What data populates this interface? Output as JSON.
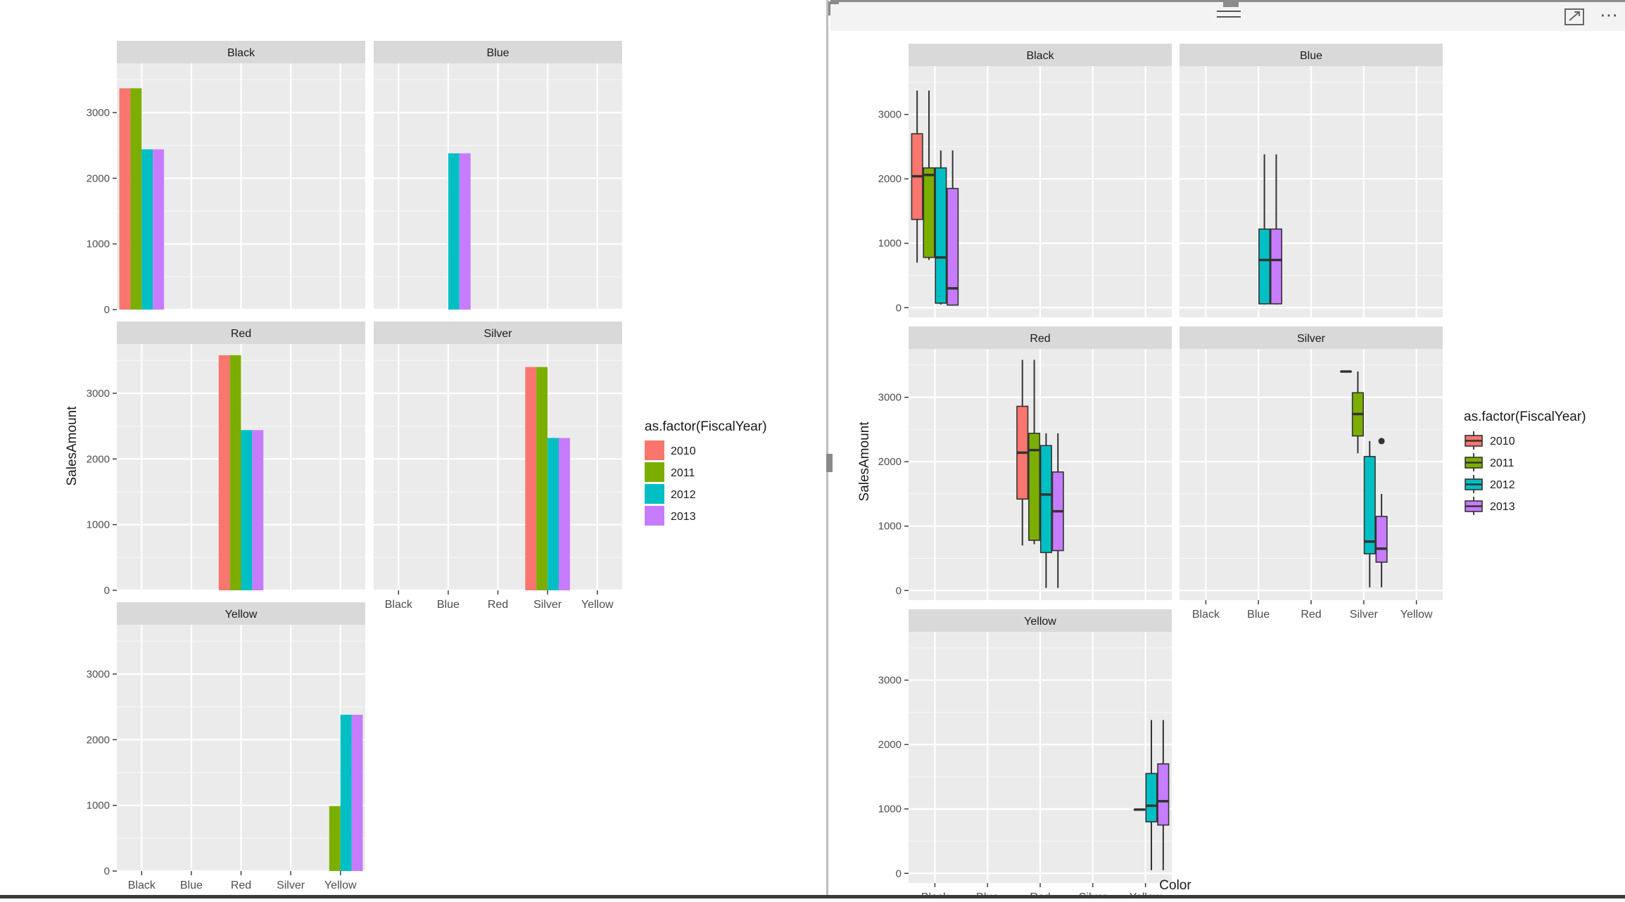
{
  "chart_data": [
    {
      "type": "bar",
      "facet_by": "Color",
      "facets": [
        {
          "strip": "Black",
          "bars": [
            {
              "x": "Black",
              "year": "2010",
              "value": 3370
            },
            {
              "x": "Black",
              "year": "2011",
              "value": 3370
            },
            {
              "x": "Black",
              "year": "2012",
              "value": 2440
            },
            {
              "x": "Black",
              "year": "2013",
              "value": 2440
            }
          ]
        },
        {
          "strip": "Blue",
          "bars": [
            {
              "x": "Blue",
              "year": "2012",
              "value": 2380
            },
            {
              "x": "Blue",
              "year": "2013",
              "value": 2380
            }
          ]
        },
        {
          "strip": "Red",
          "bars": [
            {
              "x": "Red",
              "year": "2010",
              "value": 3580
            },
            {
              "x": "Red",
              "year": "2011",
              "value": 3580
            },
            {
              "x": "Red",
              "year": "2012",
              "value": 2440
            },
            {
              "x": "Red",
              "year": "2013",
              "value": 2440
            }
          ]
        },
        {
          "strip": "Silver",
          "bars": [
            {
              "x": "Silver",
              "year": "2010",
              "value": 3400
            },
            {
              "x": "Silver",
              "year": "2011",
              "value": 3400
            },
            {
              "x": "Silver",
              "year": "2012",
              "value": 2320
            },
            {
              "x": "Silver",
              "year": "2013",
              "value": 2320
            }
          ]
        },
        {
          "strip": "Yellow",
          "bars": [
            {
              "x": "Yellow",
              "year": "2011",
              "value": 990
            },
            {
              "x": "Yellow",
              "year": "2012",
              "value": 2380
            },
            {
              "x": "Yellow",
              "year": "2013",
              "value": 2380
            }
          ]
        }
      ],
      "categories": [
        "Black",
        "Blue",
        "Red",
        "Silver",
        "Yellow"
      ],
      "ylabel": "SalesAmount",
      "xlabel": "",
      "ylim": [
        0,
        3750
      ],
      "yticks": [
        0,
        1000,
        2000,
        3000
      ],
      "legend": {
        "title": "as.factor(FiscalYear)",
        "position": "right",
        "entries": [
          "2010",
          "2011",
          "2012",
          "2013"
        ]
      },
      "grid": true
    },
    {
      "type": "boxplot",
      "facet_by": "Color",
      "facets": [
        {
          "strip": "Black",
          "boxes": [
            {
              "x": "Black",
              "year": "2010",
              "min": 700,
              "q1": 1370,
              "median": 2040,
              "q3": 2700,
              "max": 3370
            },
            {
              "x": "Black",
              "year": "2011",
              "min": 740,
              "q1": 780,
              "median": 2060,
              "q3": 2170,
              "max": 3370
            },
            {
              "x": "Black",
              "year": "2012",
              "min": 50,
              "q1": 70,
              "median": 780,
              "q3": 2170,
              "max": 2440
            },
            {
              "x": "Black",
              "year": "2013",
              "min": 30,
              "q1": 40,
              "median": 300,
              "q3": 1850,
              "max": 2440
            }
          ]
        },
        {
          "strip": "Blue",
          "boxes": [
            {
              "x": "Blue",
              "year": "2012",
              "min": 50,
              "q1": 60,
              "median": 740,
              "q3": 1220,
              "max": 2380
            },
            {
              "x": "Blue",
              "year": "2013",
              "min": 50,
              "q1": 60,
              "median": 740,
              "q3": 1220,
              "max": 2380
            }
          ]
        },
        {
          "strip": "Red",
          "boxes": [
            {
              "x": "Red",
              "year": "2010",
              "min": 700,
              "q1": 1420,
              "median": 2140,
              "q3": 2860,
              "max": 3580
            },
            {
              "x": "Red",
              "year": "2011",
              "min": 720,
              "q1": 780,
              "median": 2180,
              "q3": 2440,
              "max": 3580
            },
            {
              "x": "Red",
              "year": "2012",
              "min": 40,
              "q1": 590,
              "median": 1490,
              "q3": 2250,
              "max": 2440
            },
            {
              "x": "Red",
              "year": "2013",
              "min": 40,
              "q1": 620,
              "median": 1230,
              "q3": 1840,
              "max": 2440
            }
          ]
        },
        {
          "strip": "Silver",
          "boxes": [
            {
              "x": "Silver",
              "year": "2010",
              "min": 3400,
              "q1": 3400,
              "median": 3400,
              "q3": 3400,
              "max": 3400
            },
            {
              "x": "Silver",
              "year": "2011",
              "min": 2130,
              "q1": 2400,
              "median": 2740,
              "q3": 3070,
              "max": 3400
            },
            {
              "x": "Silver",
              "year": "2012",
              "min": 50,
              "q1": 570,
              "median": 760,
              "q3": 2080,
              "max": 2320
            },
            {
              "x": "Silver",
              "year": "2013",
              "min": 50,
              "q1": 440,
              "median": 650,
              "q3": 1150,
              "max": 1500,
              "outliers": [
                2320
              ]
            }
          ]
        },
        {
          "strip": "Yellow",
          "boxes": [
            {
              "x": "Yellow",
              "year": "2011",
              "min": 990,
              "q1": 990,
              "median": 990,
              "q3": 990,
              "max": 990
            },
            {
              "x": "Yellow",
              "year": "2012",
              "min": 50,
              "q1": 800,
              "median": 1050,
              "q3": 1550,
              "max": 2380
            },
            {
              "x": "Yellow",
              "year": "2013",
              "min": 50,
              "q1": 750,
              "median": 1120,
              "q3": 1700,
              "max": 2380
            }
          ]
        }
      ],
      "categories": [
        "Black",
        "Blue",
        "Red",
        "Silver",
        "Yellow"
      ],
      "ylabel": "SalesAmount",
      "xlabel": "Color",
      "ylim": [
        -150,
        3750
      ],
      "yticks": [
        0,
        1000,
        2000,
        3000
      ],
      "legend": {
        "title": "as.factor(FiscalYear)",
        "position": "right",
        "entries": [
          "2010",
          "2011",
          "2012",
          "2013"
        ]
      },
      "grid": true
    }
  ],
  "colors": {
    "2010": "#F8766D",
    "2011": "#7CAE00",
    "2012": "#00BFC4",
    "2013": "#C77CFF",
    "panel": "#EBEBEB",
    "strip": "#D9D9D9",
    "grid": "#FFFFFF"
  },
  "icons": {
    "drag": "drag-handle-icon",
    "focus": "focus-mode-icon",
    "more": "more-options-icon"
  },
  "toolbar": {
    "more_label": "⋯"
  }
}
